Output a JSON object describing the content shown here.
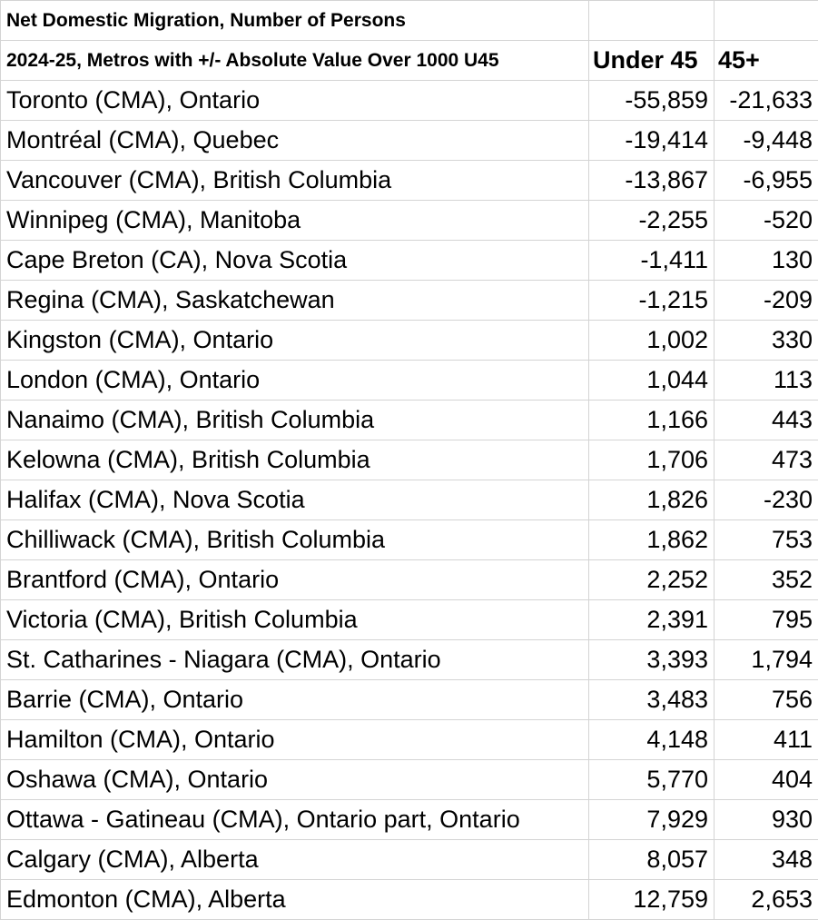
{
  "title_line1": "Net Domestic Migration, Number of Persons",
  "title_line2": "2024-25, Metros with +/- Absolute Value Over 1000 U45",
  "col_under45": "Under 45",
  "col_45plus": "45+",
  "rows": [
    {
      "name": "Toronto (CMA), Ontario",
      "u45": "-55,859",
      "o45": "-21,633"
    },
    {
      "name": "Montréal (CMA), Quebec",
      "u45": "-19,414",
      "o45": "-9,448"
    },
    {
      "name": "Vancouver (CMA), British Columbia",
      "u45": "-13,867",
      "o45": "-6,955"
    },
    {
      "name": "Winnipeg (CMA), Manitoba",
      "u45": "-2,255",
      "o45": "-520"
    },
    {
      "name": "Cape Breton (CA), Nova Scotia",
      "u45": "-1,411",
      "o45": "130"
    },
    {
      "name": "Regina (CMA), Saskatchewan",
      "u45": "-1,215",
      "o45": "-209"
    },
    {
      "name": "Kingston (CMA), Ontario",
      "u45": "1,002",
      "o45": "330"
    },
    {
      "name": "London (CMA), Ontario",
      "u45": "1,044",
      "o45": "113"
    },
    {
      "name": "Nanaimo (CMA), British Columbia",
      "u45": "1,166",
      "o45": "443"
    },
    {
      "name": "Kelowna (CMA), British Columbia",
      "u45": "1,706",
      "o45": "473"
    },
    {
      "name": "Halifax (CMA), Nova Scotia",
      "u45": "1,826",
      "o45": "-230"
    },
    {
      "name": "Chilliwack (CMA), British Columbia",
      "u45": "1,862",
      "o45": "753"
    },
    {
      "name": "Brantford (CMA), Ontario",
      "u45": "2,252",
      "o45": "352"
    },
    {
      "name": "Victoria (CMA), British Columbia",
      "u45": "2,391",
      "o45": "795"
    },
    {
      "name": "St. Catharines - Niagara (CMA), Ontario",
      "u45": "3,393",
      "o45": "1,794"
    },
    {
      "name": "Barrie (CMA), Ontario",
      "u45": "3,483",
      "o45": "756"
    },
    {
      "name": "Hamilton (CMA), Ontario",
      "u45": "4,148",
      "o45": "411"
    },
    {
      "name": "Oshawa (CMA), Ontario",
      "u45": "5,770",
      "o45": "404"
    },
    {
      "name": "Ottawa - Gatineau (CMA), Ontario part, Ontario",
      "u45": "7,929",
      "o45": "930"
    },
    {
      "name": "Calgary (CMA), Alberta",
      "u45": "8,057",
      "o45": "348"
    },
    {
      "name": "Edmonton (CMA), Alberta",
      "u45": "12,759",
      "o45": "2,653"
    }
  ]
}
